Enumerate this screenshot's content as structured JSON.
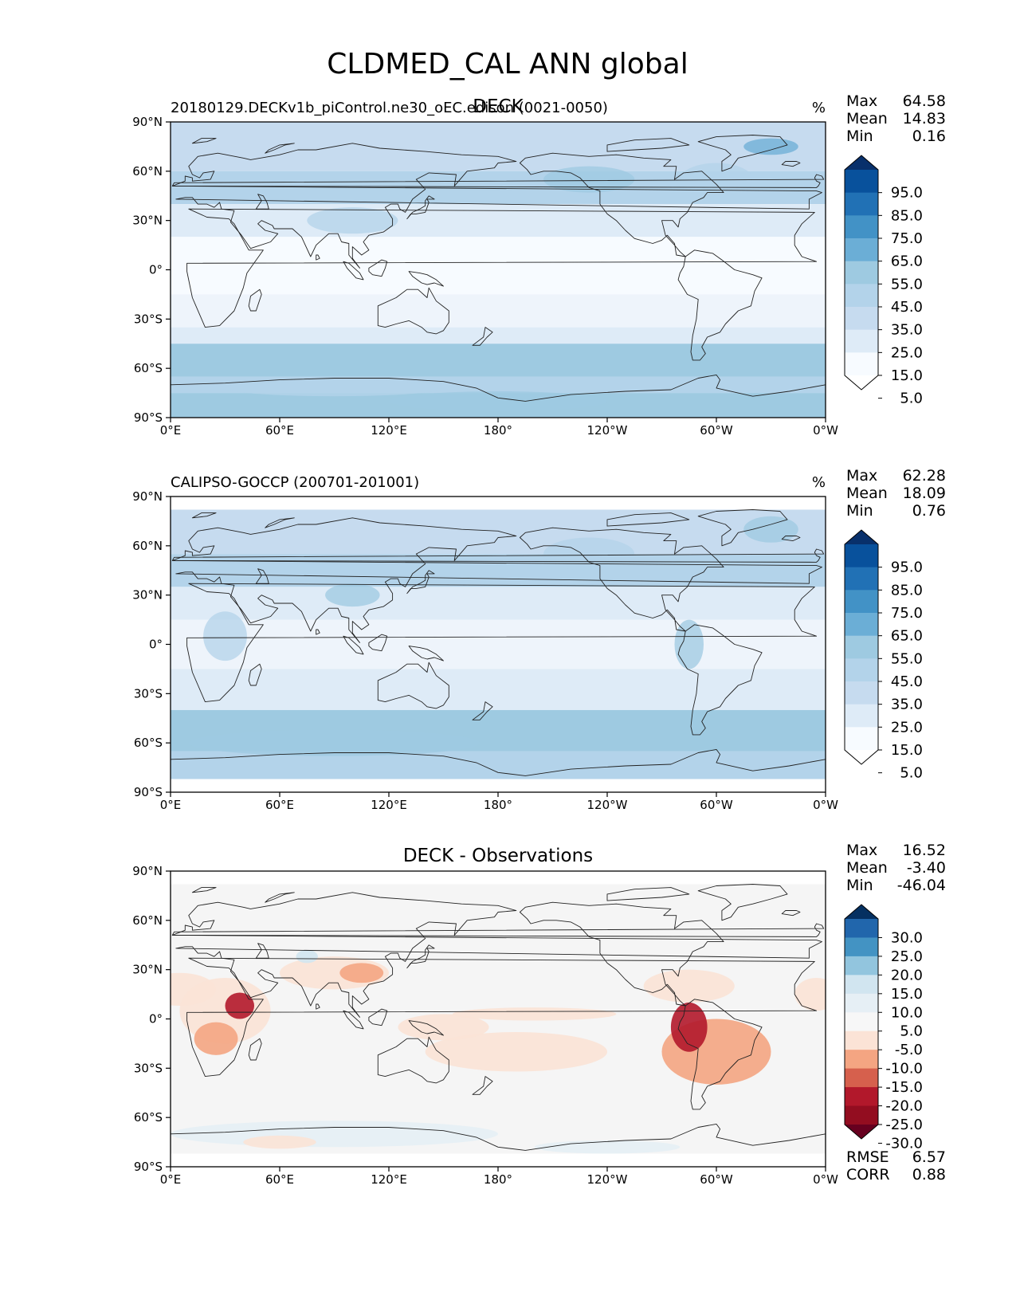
{
  "figure_title": "CLDMED_CAL ANN global",
  "chart_data": [
    {
      "type": "heatmap",
      "title": "DECK",
      "subtitle": "20180129.DECKv1b_piControl.ne30_oEC.edison (0021-0050)",
      "units": "%",
      "stats": {
        "labels": [
          "Max",
          "Mean",
          "Min"
        ],
        "values": [
          "64.58",
          "14.83",
          "0.16"
        ]
      },
      "x_ticks": [
        "0°E",
        "60°E",
        "120°E",
        "180°",
        "120°W",
        "60°W",
        "0°W"
      ],
      "y_ticks": [
        "90°N",
        "60°N",
        "30°N",
        "0°",
        "30°S",
        "60°S",
        "90°S"
      ],
      "xlim": [
        0,
        360
      ],
      "ylim": [
        -90,
        90
      ],
      "colorbar": {
        "labels": [
          "95.0",
          "85.0",
          "75.0",
          "65.0",
          "55.0",
          "45.0",
          "35.0",
          "25.0",
          "15.0",
          "5.0"
        ],
        "colors": [
          "#08306b",
          "#08519c",
          "#2171b5",
          "#4292c6",
          "#6baed6",
          "#9ecae1",
          "#b3d3ea",
          "#c6dbef",
          "#deebf7",
          "#f7fbff",
          "#ffffff"
        ],
        "extend": "both"
      },
      "bands": [
        {
          "lat": [
            60,
            90
          ],
          "color": "#c6dbef"
        },
        {
          "lat": [
            40,
            60
          ],
          "color": "#b3d3ea"
        },
        {
          "lat": [
            20,
            40
          ],
          "color": "#deebf7"
        },
        {
          "lat": [
            -15,
            20
          ],
          "color": "#f7fbff"
        },
        {
          "lat": [
            -35,
            -15
          ],
          "color": "#eef4fb"
        },
        {
          "lat": [
            -45,
            -35
          ],
          "color": "#deebf7"
        },
        {
          "lat": [
            -65,
            -45
          ],
          "color": "#9ecae1"
        },
        {
          "lat": [
            -75,
            -65
          ],
          "color": "#b3d3ea"
        },
        {
          "lat": [
            -90,
            -75
          ],
          "color": "#9ecae1"
        }
      ]
    },
    {
      "type": "heatmap",
      "title": "",
      "subtitle": "CALIPSO-GOCCP (200701-201001)",
      "units": "%",
      "stats": {
        "labels": [
          "Max",
          "Mean",
          "Min"
        ],
        "values": [
          "62.28",
          "18.09",
          "0.76"
        ]
      },
      "x_ticks": [
        "0°E",
        "60°E",
        "120°E",
        "180°",
        "120°W",
        "60°W",
        "0°W"
      ],
      "y_ticks": [
        "90°N",
        "60°N",
        "30°N",
        "0°",
        "30°S",
        "60°S",
        "90°S"
      ],
      "xlim": [
        0,
        360
      ],
      "ylim": [
        -90,
        90
      ],
      "data_lat_range": [
        -82,
        82
      ],
      "colorbar": {
        "labels": [
          "95.0",
          "85.0",
          "75.0",
          "65.0",
          "55.0",
          "45.0",
          "35.0",
          "25.0",
          "15.0",
          "5.0"
        ],
        "colors": [
          "#08306b",
          "#08519c",
          "#2171b5",
          "#4292c6",
          "#6baed6",
          "#9ecae1",
          "#b3d3ea",
          "#c6dbef",
          "#deebf7",
          "#f7fbff",
          "#ffffff"
        ],
        "extend": "both"
      },
      "bands": [
        {
          "lat": [
            55,
            82
          ],
          "color": "#c6dbef"
        },
        {
          "lat": [
            35,
            55
          ],
          "color": "#b3d3ea"
        },
        {
          "lat": [
            15,
            35
          ],
          "color": "#deebf7"
        },
        {
          "lat": [
            -15,
            15
          ],
          "color": "#eef4fb"
        },
        {
          "lat": [
            -40,
            -15
          ],
          "color": "#deebf7"
        },
        {
          "lat": [
            -65,
            -40
          ],
          "color": "#9ecae1"
        },
        {
          "lat": [
            -82,
            -65
          ],
          "color": "#b3d3ea"
        }
      ]
    },
    {
      "type": "heatmap",
      "title": "DECK - Observations",
      "subtitle": "",
      "units": "",
      "stats": {
        "labels": [
          "Max",
          "Mean",
          "Min"
        ],
        "values": [
          "16.52",
          "-3.40",
          "-46.04"
        ]
      },
      "metrics": {
        "labels": [
          "RMSE",
          "CORR"
        ],
        "values": [
          "6.57",
          "0.88"
        ]
      },
      "x_ticks": [
        "0°E",
        "60°E",
        "120°E",
        "180°",
        "120°W",
        "60°W",
        "0°W"
      ],
      "y_ticks": [
        "90°N",
        "60°N",
        "30°N",
        "0°",
        "30°S",
        "60°S",
        "90°S"
      ],
      "xlim": [
        0,
        360
      ],
      "ylim": [
        -90,
        90
      ],
      "data_lat_range": [
        -82,
        82
      ],
      "colorbar": {
        "labels": [
          "30.0",
          "25.0",
          "20.0",
          "15.0",
          "10.0",
          "5.0",
          "-5.0",
          "-10.0",
          "-15.0",
          "-20.0",
          "-25.0",
          "-30.0"
        ],
        "colors": [
          "#053061",
          "#2166ac",
          "#4393c3",
          "#92c5de",
          "#d1e5f0",
          "#e6eff5",
          "#f7f7f7",
          "#fbe3d6",
          "#f4a582",
          "#d6604d",
          "#b2182b",
          "#930d20",
          "#67001f"
        ],
        "extend": "both"
      },
      "bands": [
        {
          "lat": [
            -82,
            82
          ],
          "color": "#f5f5f5"
        }
      ]
    }
  ]
}
